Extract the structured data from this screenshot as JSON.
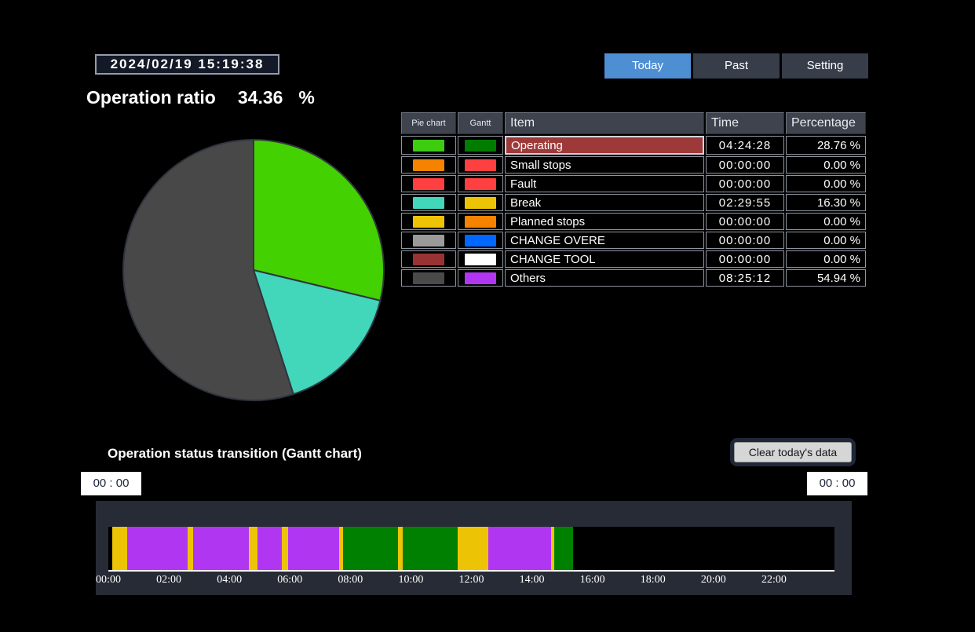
{
  "clock": "2024/02/19 15:19:38",
  "tabs": [
    {
      "label": "Today",
      "active": true
    },
    {
      "label": "Past",
      "active": false
    },
    {
      "label": "Setting",
      "active": false
    }
  ],
  "tab_colors": {
    "active": "#4e8fd3",
    "inactive": "#373d49"
  },
  "operation_ratio": {
    "label": "Operation ratio",
    "value": "34.36",
    "unit": "%"
  },
  "status_table": {
    "headers": [
      "Pie chart",
      "Gantt",
      "Item",
      "Time",
      "Percentage"
    ],
    "selected_row_bg": "#9e3939",
    "rows": [
      {
        "item": "Operating",
        "pie_color": "#3ecc11",
        "gantt_color": "#007d00",
        "time": "04:24:28",
        "percentage": "28.76 %",
        "selected": true
      },
      {
        "item": "Small stops",
        "pie_color": "#f58300",
        "gantt_color": "#ff4040",
        "time": "00:00:00",
        "percentage": "0.00 %",
        "selected": false
      },
      {
        "item": "Fault",
        "pie_color": "#ff4040",
        "gantt_color": "#ff4040",
        "time": "00:00:00",
        "percentage": "0.00 %",
        "selected": false
      },
      {
        "item": "Break",
        "pie_color": "#42d6ba",
        "gantt_color": "#edc405",
        "time": "02:29:55",
        "percentage": "16.30 %",
        "selected": false
      },
      {
        "item": "Planned stops",
        "pie_color": "#edc405",
        "gantt_color": "#f58300",
        "time": "00:00:00",
        "percentage": "0.00 %",
        "selected": false
      },
      {
        "item": "CHANGE OVERE",
        "pie_color": "#9a9a9a",
        "gantt_color": "#0068ff",
        "time": "00:00:00",
        "percentage": "0.00 %",
        "selected": false
      },
      {
        "item": "CHANGE TOOL",
        "pie_color": "#993333",
        "gantt_color": "#ffffff",
        "time": "00:00:00",
        "percentage": "0.00 %",
        "selected": false
      },
      {
        "item": "Others",
        "pie_color": "#4a4a4a",
        "gantt_color": "#b136f2",
        "time": "08:25:12",
        "percentage": "54.94 %",
        "selected": false
      }
    ]
  },
  "gantt_section": {
    "title": "Operation status transition (Gantt chart)",
    "clear_button_label": "Clear today's data",
    "range_start": "00 : 00",
    "range_end": "00 : 00"
  },
  "chart_data": [
    {
      "type": "pie",
      "title": "Operation ratio",
      "start_angle_deg": -90,
      "direction": "clockwise",
      "stroke_color": "#30353f",
      "slices": [
        {
          "label": "Operating",
          "value": 28.76,
          "color": "#44d102"
        },
        {
          "label": "Break",
          "value": 16.3,
          "color": "#42d6ba"
        },
        {
          "label": "Others",
          "value": 54.94,
          "color": "#484848"
        }
      ]
    },
    {
      "type": "gantt",
      "title": "Operation status transition (Gantt chart)",
      "x_range_hours": [
        0,
        24
      ],
      "tick_labels": [
        "00:00",
        "02:00",
        "04:00",
        "06:00",
        "08:00",
        "10:00",
        "12:00",
        "14:00",
        "16:00",
        "18:00",
        "20:00",
        "22:00"
      ],
      "plot_bg": "#000000",
      "status_colors": {
        "Operating": "#008000",
        "Break": "#edc405",
        "Others": "#b136f2"
      },
      "segments": [
        {
          "start": 0.12,
          "end": 0.61,
          "status": "Break"
        },
        {
          "start": 0.61,
          "end": 2.63,
          "status": "Others"
        },
        {
          "start": 2.63,
          "end": 2.8,
          "status": "Break"
        },
        {
          "start": 2.8,
          "end": 4.64,
          "status": "Others"
        },
        {
          "start": 4.64,
          "end": 4.94,
          "status": "Break"
        },
        {
          "start": 4.94,
          "end": 5.74,
          "status": "Others"
        },
        {
          "start": 5.74,
          "end": 5.93,
          "status": "Break"
        },
        {
          "start": 5.93,
          "end": 7.62,
          "status": "Others"
        },
        {
          "start": 7.62,
          "end": 7.77,
          "status": "Break"
        },
        {
          "start": 7.77,
          "end": 9.57,
          "status": "Operating"
        },
        {
          "start": 9.57,
          "end": 9.74,
          "status": "Break"
        },
        {
          "start": 9.74,
          "end": 11.55,
          "status": "Operating"
        },
        {
          "start": 11.55,
          "end": 12.55,
          "status": "Break"
        },
        {
          "start": 12.55,
          "end": 14.63,
          "status": "Others"
        },
        {
          "start": 14.63,
          "end": 14.74,
          "status": "Break"
        },
        {
          "start": 14.74,
          "end": 15.36,
          "status": "Operating"
        }
      ]
    }
  ]
}
